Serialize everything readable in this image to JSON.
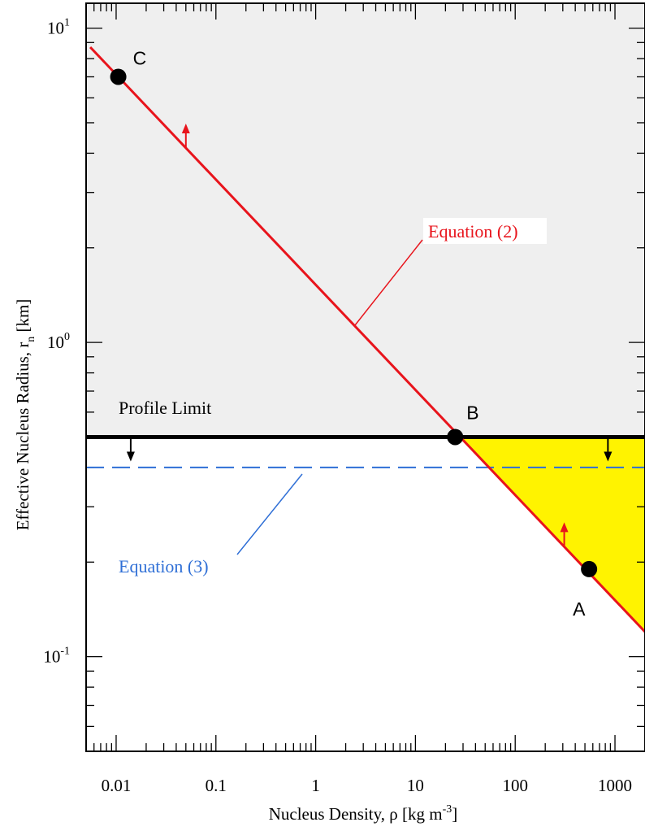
{
  "chart_data": {
    "type": "line",
    "xscale": "log",
    "yscale": "log",
    "xlim": [
      0.005,
      2000
    ],
    "ylim": [
      0.05,
      12
    ],
    "xlabel_prefix": "Nucleus Density, ρ [kg m",
    "xlabel_sup": "-3",
    "xlabel_suffix": "]",
    "ylabel_prefix": "Effective Nucleus Radius, r",
    "ylabel_sub": "n",
    "ylabel_suffix": "  [km]",
    "x_ticks": [
      {
        "value": 0.01,
        "label": "0.01"
      },
      {
        "value": 0.1,
        "label": "0.1"
      },
      {
        "value": 1,
        "label": "1"
      },
      {
        "value": 10,
        "label": "10"
      },
      {
        "value": 100,
        "label": "100"
      },
      {
        "value": 1000,
        "label": "1000"
      }
    ],
    "y_ticks": [
      {
        "value": 0.1,
        "base": "10",
        "exp": "-1"
      },
      {
        "value": 1,
        "base": "10",
        "exp": "0"
      },
      {
        "value": 10,
        "base": "10",
        "exp": "1"
      }
    ],
    "lines": {
      "equation2": {
        "label": "Equation (2)",
        "color": "#e8141c",
        "x": [
          0.0055,
          2000
        ],
        "y": [
          8.7,
          0.12
        ]
      },
      "profile_limit": {
        "label": "Profile Limit",
        "color": "#000000",
        "y": 0.5
      },
      "equation3": {
        "label": "Equation (3)",
        "color": "#2f6fd6",
        "y": 0.4
      }
    },
    "points": [
      {
        "label": "C",
        "x": 0.0105,
        "y": 7.0
      },
      {
        "label": "B",
        "x": 25,
        "y": 0.5
      },
      {
        "label": "A",
        "x": 550,
        "y": 0.19
      }
    ],
    "regions": {
      "gray_fill": "#efefef",
      "yellow_fill": "#fff300"
    }
  }
}
